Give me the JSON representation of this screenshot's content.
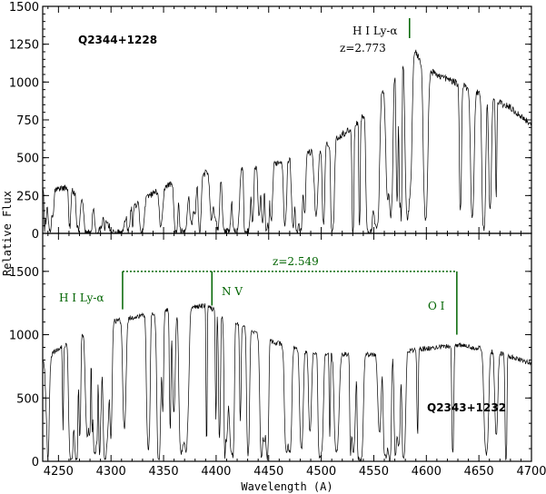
{
  "chart_data": [
    {
      "type": "line",
      "panel": "top",
      "label": "Q2344+1228",
      "ylim": [
        0,
        1500
      ],
      "yticks": [
        0,
        250,
        500,
        750,
        1000,
        1250,
        1500
      ],
      "xlim": [
        4235,
        4700
      ],
      "continuum": [
        [
          4235,
          300
        ],
        [
          4260,
          300
        ],
        [
          4290,
          120
        ],
        [
          4305,
          5
        ],
        [
          4320,
          170
        ],
        [
          4350,
          310
        ],
        [
          4400,
          420
        ],
        [
          4450,
          450
        ],
        [
          4500,
          560
        ],
        [
          4530,
          700
        ],
        [
          4550,
          850
        ],
        [
          4570,
          1080
        ],
        [
          4585,
          1250
        ],
        [
          4600,
          1080
        ],
        [
          4650,
          930
        ],
        [
          4680,
          830
        ],
        [
          4700,
          720
        ]
      ],
      "annotations": [
        {
          "text": "H I Ly-α",
          "x": 4584,
          "color": "#006400"
        },
        {
          "text": "z=2.773"
        }
      ]
    },
    {
      "type": "line",
      "panel": "bottom",
      "label": "Q2343+1232",
      "ylim": [
        0,
        1800
      ],
      "yticks": [
        0,
        500,
        1000,
        1500
      ],
      "xlim": [
        4235,
        4700
      ],
      "continuum": [
        [
          4235,
          800
        ],
        [
          4270,
          1000
        ],
        [
          4300,
          1100
        ],
        [
          4330,
          1150
        ],
        [
          4360,
          1200
        ],
        [
          4390,
          1230
        ],
        [
          4420,
          1100
        ],
        [
          4450,
          950
        ],
        [
          4500,
          850
        ],
        [
          4550,
          840
        ],
        [
          4600,
          890
        ],
        [
          4630,
          920
        ],
        [
          4660,
          880
        ],
        [
          4700,
          770
        ]
      ],
      "annotations": [
        {
          "text": "z=2.549"
        },
        {
          "text": "H I Ly-α",
          "x": 4311,
          "color": "#006400"
        },
        {
          "text": "N V",
          "x": 4396,
          "color": "#006400"
        },
        {
          "text": "O I",
          "x": 4629,
          "color": "#006400"
        }
      ]
    }
  ],
  "axes": {
    "xticks": [
      4250,
      4300,
      4350,
      4400,
      4450,
      4500,
      4550,
      4600,
      4650,
      4700
    ],
    "xlabel": "Wavelength (A)",
    "ylabel": "Relative Flux"
  },
  "colors": {
    "spectrum": "#000000",
    "annotation": "#006400"
  }
}
